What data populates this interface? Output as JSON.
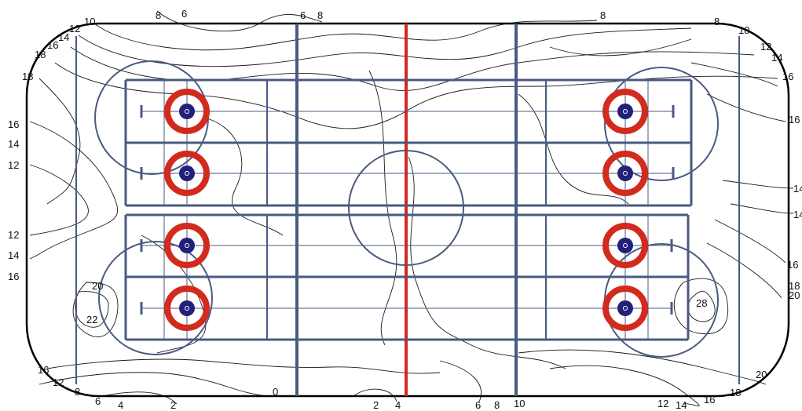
{
  "colors": {
    "boundary": "#000000",
    "contour": "#1a1a1a",
    "lines": "#4a5a80",
    "centerline": "#d32a1e",
    "house_ring": "#d32a1e",
    "house_button": "#23207a"
  },
  "contour_labels": [
    {
      "id": "t-8a",
      "text": "8"
    },
    {
      "id": "t-6a",
      "text": "6"
    },
    {
      "id": "t-6b",
      "text": "6"
    },
    {
      "id": "t-8b",
      "text": "8"
    },
    {
      "id": "t-8c",
      "text": "8"
    },
    {
      "id": "t-8d",
      "text": "8"
    },
    {
      "id": "t-10a",
      "text": "10"
    },
    {
      "id": "t-10b",
      "text": "10"
    },
    {
      "id": "t-12a",
      "text": "12"
    },
    {
      "id": "t-14a",
      "text": "14"
    },
    {
      "id": "t-16a",
      "text": "16"
    },
    {
      "id": "t-18a",
      "text": "18"
    },
    {
      "id": "l-18",
      "text": "18"
    },
    {
      "id": "l-16a",
      "text": "16"
    },
    {
      "id": "l-14a",
      "text": "14"
    },
    {
      "id": "l-12a",
      "text": "12"
    },
    {
      "id": "l-12b",
      "text": "12"
    },
    {
      "id": "l-14b",
      "text": "14"
    },
    {
      "id": "l-16b",
      "text": "16"
    },
    {
      "id": "in-20",
      "text": "20"
    },
    {
      "id": "in-22",
      "text": "22"
    },
    {
      "id": "in-28",
      "text": "28"
    },
    {
      "id": "r-12",
      "text": "12"
    },
    {
      "id": "r-14a",
      "text": "14"
    },
    {
      "id": "r-16a",
      "text": "16"
    },
    {
      "id": "r-16b",
      "text": "16"
    },
    {
      "id": "r-14b",
      "text": "14"
    },
    {
      "id": "r-14c",
      "text": "14"
    },
    {
      "id": "r-16c",
      "text": "16"
    },
    {
      "id": "r-18",
      "text": "18"
    },
    {
      "id": "r-20a",
      "text": "20"
    },
    {
      "id": "r-20b",
      "text": "20"
    },
    {
      "id": "b-16a",
      "text": "16"
    },
    {
      "id": "b-12",
      "text": "12"
    },
    {
      "id": "b-8a",
      "text": "8"
    },
    {
      "id": "b-6a",
      "text": "6"
    },
    {
      "id": "b-4a",
      "text": "4"
    },
    {
      "id": "b-2a",
      "text": "2"
    },
    {
      "id": "b-0",
      "text": "0"
    },
    {
      "id": "b-2b",
      "text": "2"
    },
    {
      "id": "b-4b",
      "text": "4"
    },
    {
      "id": "b-6b",
      "text": "6"
    },
    {
      "id": "b-8b",
      "text": "8"
    },
    {
      "id": "b-10",
      "text": "10"
    },
    {
      "id": "b-12b",
      "text": "12"
    },
    {
      "id": "b-14",
      "text": "14"
    },
    {
      "id": "b-16b",
      "text": "16"
    },
    {
      "id": "b-18",
      "text": "18"
    }
  ]
}
